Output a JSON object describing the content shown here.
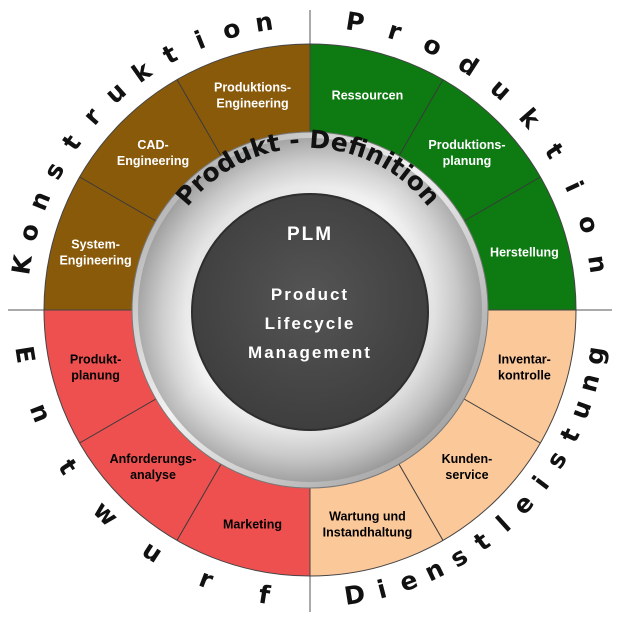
{
  "colors": {
    "konstruktion": "#8a5a0b",
    "produktion": "#0d7a12",
    "dienstleistung": "#fbc89a",
    "entwurf": "#ee5050",
    "center": "#4a4a4a"
  },
  "quadrants": {
    "konstruktion": {
      "title": "Konstruktion",
      "segments": [
        "System-\nEngineering",
        "CAD-\nEngineering",
        "Produktions-\nEngineering"
      ]
    },
    "produktion": {
      "title": "Produktion",
      "segments": [
        "Ressourcen",
        "Produktions-\nplanung",
        "Herstellung"
      ]
    },
    "dienstleistung": {
      "title": "Dienstleistung",
      "segments": [
        "Inventar-\nkontrolle",
        "Kunden-\nservice",
        "Wartung und\nInstandhaltung"
      ]
    },
    "entwurf": {
      "title": "Entwurf",
      "segments": [
        "Marketing",
        "Anforderungs-\nanalyse",
        "Produkt-\nplanung"
      ]
    }
  },
  "ring": {
    "title": "Produkt - Definition"
  },
  "center": {
    "heading": "PLM",
    "lines": [
      "Product",
      "Lifecycle",
      "Management"
    ]
  }
}
